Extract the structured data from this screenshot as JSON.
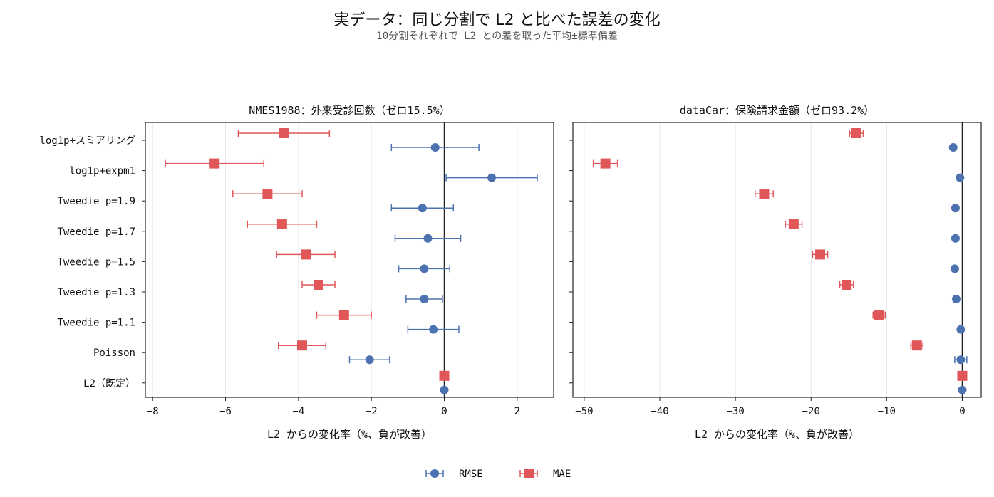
{
  "figure": {
    "title": "実データ：同じ分割で L2 と比べた誤差の変化",
    "subtitle": "10分割それぞれで L2 との差を取った平均±標準偏差"
  },
  "colors": {
    "rmse": "#4c72b0",
    "mae": "#e15759",
    "zero_line": "#222222",
    "grid": "#e8e8e8"
  },
  "legend": {
    "placement": "bottom-center",
    "items": [
      "RMSE",
      "MAE"
    ]
  },
  "chart_data": [
    {
      "type": "scatter",
      "subtype": "errorbar",
      "title": "NMES1988：外来受診回数（ゼロ15.5%）",
      "xlabel": "L2 からの変化率（%、負が改善）",
      "ylabel": "",
      "categories": [
        "log1p+スミアリング",
        "log1p+expm1",
        "Tweedie p=1.9",
        "Tweedie p=1.7",
        "Tweedie p=1.5",
        "Tweedie p=1.3",
        "Tweedie p=1.1",
        "Poisson",
        "L2（既定）"
      ],
      "xlim": [
        -8.2,
        3.0
      ],
      "xticks": [
        -8,
        -6,
        -4,
        -2,
        0,
        2
      ],
      "grid": "vertical",
      "series": [
        {
          "name": "RMSE",
          "mean": [
            -0.25,
            1.3,
            -0.6,
            -0.45,
            -0.55,
            -0.55,
            -0.3,
            -2.05,
            0.0
          ],
          "std": [
            1.2,
            1.25,
            0.85,
            0.9,
            0.7,
            0.5,
            0.7,
            0.55,
            0.0
          ]
        },
        {
          "name": "MAE",
          "mean": [
            -4.4,
            -6.3,
            -4.85,
            -4.45,
            -3.8,
            -3.45,
            -2.75,
            -3.9,
            0.0
          ],
          "std": [
            1.25,
            1.35,
            0.95,
            0.95,
            0.8,
            0.45,
            0.75,
            0.65,
            0.0
          ]
        }
      ]
    },
    {
      "type": "scatter",
      "subtype": "errorbar",
      "title": "dataCar：保険請求金額（ゼロ93.2%）",
      "xlabel": "L2 からの変化率（%、負が改善）",
      "ylabel": "",
      "categories": [
        "log1p+スミアリング",
        "log1p+expm1",
        "Tweedie p=1.9",
        "Tweedie p=1.7",
        "Tweedie p=1.5",
        "Tweedie p=1.3",
        "Tweedie p=1.1",
        "Poisson",
        "L2（既定）"
      ],
      "xlim": [
        -51.5,
        2.5
      ],
      "xticks": [
        -50,
        -40,
        -30,
        -20,
        -10,
        0
      ],
      "grid": "vertical",
      "series": [
        {
          "name": "RMSE",
          "mean": [
            -1.2,
            -0.3,
            -0.9,
            -0.9,
            -1.0,
            -0.8,
            -0.2,
            -0.2,
            0.0
          ],
          "std": [
            0.0,
            0.0,
            0.0,
            0.0,
            0.0,
            0.0,
            0.0,
            0.8,
            0.0
          ]
        },
        {
          "name": "MAE",
          "mean": [
            -14.0,
            -47.2,
            -26.2,
            -22.3,
            -18.8,
            -15.3,
            -11.0,
            -6.0,
            0.0
          ],
          "std": [
            0.9,
            1.6,
            1.2,
            1.1,
            1.0,
            0.9,
            0.8,
            0.8,
            0.0
          ]
        }
      ]
    }
  ]
}
